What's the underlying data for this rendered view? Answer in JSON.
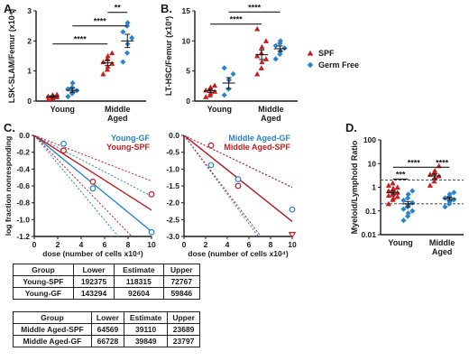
{
  "colors": {
    "spf": "#c41e1e",
    "gf": "#2a84cc",
    "axis": "#1a1a1a",
    "ref": "#333333"
  },
  "panels": {
    "A": {
      "letter": "A."
    },
    "B": {
      "letter": "B."
    },
    "C": {
      "letter": "C."
    },
    "D": {
      "letter": "D."
    }
  },
  "chart_data": [
    {
      "id": "A",
      "type": "scatter",
      "ylabel": "LSK-SLAM/Femur (x10⁴)",
      "ylim": [
        0,
        3
      ],
      "yticks": [
        0,
        1,
        2,
        3
      ],
      "groups": [
        "Young",
        "Middle Aged"
      ],
      "series": [
        {
          "name": "SPF",
          "marker": "triangle",
          "points": [
            {
              "group": "Young",
              "values": [
                0.05,
                0.1,
                0.12,
                0.14,
                0.16,
                0.18,
                0.2,
                0.22
              ],
              "mean": 0.15,
              "sem": 0.03
            },
            {
              "group": "Middle Aged",
              "values": [
                0.9,
                1.05,
                1.15,
                1.25,
                1.3,
                1.4,
                1.5,
                1.6
              ],
              "mean": 1.27,
              "sem": 0.09
            }
          ]
        },
        {
          "name": "Germ Free",
          "marker": "diamond",
          "points": [
            {
              "group": "Young",
              "values": [
                0.15,
                0.25,
                0.3,
                0.35,
                0.4,
                0.45,
                0.6
              ],
              "mean": 0.36,
              "sem": 0.07
            },
            {
              "group": "Middle Aged",
              "values": [
                1.3,
                1.6,
                1.9,
                2.1,
                2.3,
                2.5,
                2.6
              ],
              "mean": 2.0,
              "sem": 0.22
            }
          ]
        }
      ],
      "significance": [
        {
          "label": "****",
          "from": [
            0,
            "SPF"
          ],
          "to": [
            1,
            "SPF"
          ],
          "y": 1.9
        },
        {
          "label": "****",
          "from": [
            0,
            "Germ Free"
          ],
          "to": [
            1,
            "Germ Free"
          ],
          "y": 2.5
        },
        {
          "label": "**",
          "from": [
            1,
            "SPF"
          ],
          "to": [
            1,
            "Germ Free"
          ],
          "y": 2.95
        }
      ]
    },
    {
      "id": "B",
      "type": "scatter",
      "ylabel": "LT-HSC/Femur (x10³)",
      "ylim": [
        0,
        15
      ],
      "yticks": [
        0,
        5,
        10,
        15
      ],
      "groups": [
        "Young",
        "Middle Aged"
      ],
      "legend": {
        "placement": "right",
        "entries": [
          "SPF",
          "Germ Free"
        ]
      },
      "series": [
        {
          "name": "SPF",
          "marker": "triangle",
          "points": [
            {
              "group": "Young",
              "values": [
                0.7,
                1.0,
                1.3,
                1.6,
                1.8,
                2.0,
                2.3,
                2.6
              ],
              "mean": 1.7,
              "sem": 0.25
            },
            {
              "group": "Middle Aged",
              "values": [
                4.5,
                5.5,
                6.5,
                7.0,
                7.5,
                8.0,
                9.0,
                10.0,
                12.0
              ],
              "mean": 7.7,
              "sem": 0.8
            }
          ]
        },
        {
          "name": "Germ Free",
          "marker": "diamond",
          "points": [
            {
              "group": "Young",
              "values": [
                1.0,
                2.0,
                3.5,
                4.5,
                5.5
              ],
              "mean": 3.0,
              "sem": 0.9
            },
            {
              "group": "Middle Aged",
              "values": [
                7.0,
                7.8,
                8.3,
                8.8,
                9.2,
                9.6,
                10.0
              ],
              "mean": 8.7,
              "sem": 0.45
            }
          ]
        }
      ],
      "significance": [
        {
          "label": "****",
          "from": [
            0,
            "SPF"
          ],
          "to": [
            1,
            "SPF"
          ],
          "y": 12.8
        },
        {
          "label": "****",
          "from": [
            0,
            "Germ Free"
          ],
          "to": [
            1,
            "Germ Free"
          ],
          "y": 14.8
        }
      ]
    },
    {
      "id": "C1",
      "type": "line",
      "xlabel": "dose (number of cells x10⁴)",
      "ylabel": "log fraction nonresponding",
      "xlim": [
        0,
        10
      ],
      "xticks": [
        0,
        2,
        4,
        6,
        8,
        10
      ],
      "ylim": [
        -1.2,
        0
      ],
      "yticks": [
        0,
        -0.2,
        -0.4,
        -0.6,
        -0.8,
        -1.0,
        -1.2
      ],
      "legend": {
        "placement": "top-right",
        "entries": [
          "Young-GF",
          "Young-SPF"
        ]
      },
      "series": [
        {
          "name": "Young-GF",
          "color": "gf",
          "slope": -0.1141,
          "lower_slope": -0.0721,
          "upper_slope": -0.1676,
          "points": [
            {
              "x": 2.5,
              "y": -0.1
            },
            {
              "x": 5,
              "y": -0.63
            },
            {
              "x": 10,
              "y": -1.15
            }
          ]
        },
        {
          "name": "Young-SPF",
          "color": "spf",
          "slope": -0.0887,
          "lower_slope": -0.0542,
          "upper_slope": -0.1442,
          "points": [
            {
              "x": 2.5,
              "y": -0.18
            },
            {
              "x": 5,
              "y": -0.55
            },
            {
              "x": 10,
              "y": -0.7
            }
          ]
        }
      ]
    },
    {
      "id": "C2",
      "type": "line",
      "xlabel": "dose (number of cells x10⁴)",
      "ylabel": "",
      "xlim": [
        0,
        10
      ],
      "xticks": [
        0,
        2,
        4,
        6,
        8,
        10
      ],
      "ylim": [
        -3.0,
        0
      ],
      "yticks": [
        0,
        -0.5,
        -1.0,
        -1.5,
        -2.0,
        -2.5,
        -3.0
      ],
      "legend": {
        "placement": "top-right",
        "entries": [
          "Middle Aged-GF",
          "Middle Aged-SPF"
        ]
      },
      "series": [
        {
          "name": "Middle Aged-GF",
          "color": "gf",
          "slope": -0.2555,
          "lower_slope": -0.1537,
          "upper_slope": -0.4368,
          "points": [
            {
              "x": 2.5,
              "y": -0.88
            },
            {
              "x": 5,
              "y": -1.3
            },
            {
              "x": 10,
              "y": -2.2
            }
          ]
        },
        {
          "name": "Middle Aged-SPF",
          "color": "spf",
          "slope": -0.2557,
          "lower_slope": -0.1548,
          "upper_slope": -0.4221,
          "points": [
            {
              "x": 2.5,
              "y": -0.3
            },
            {
              "x": 5,
              "y": -1.5
            },
            {
              "x": 10,
              "y": -2.95,
              "marker": "open-triangle"
            }
          ]
        }
      ]
    },
    {
      "id": "D",
      "type": "scatter",
      "ylabel": "Myeloid/Lymphoid Ratio",
      "yscale": "log",
      "ylim": [
        0.01,
        100
      ],
      "yticks": [
        0.01,
        0.1,
        1,
        10,
        100
      ],
      "ytick_labels": [
        "0.01",
        "0.1",
        "1",
        "10",
        "100"
      ],
      "groups": [
        "Young",
        "Middle Aged"
      ],
      "reference_lines": [
        2.0,
        0.2
      ],
      "series": [
        {
          "name": "SPF",
          "marker": "triangle",
          "points": [
            {
              "group": "Young",
              "values": [
                0.2,
                0.3,
                0.35,
                0.4,
                0.45,
                0.5,
                0.55,
                0.6,
                0.7,
                0.8,
                0.9,
                1.0,
                1.2,
                1.5
              ],
              "mean": 0.6,
              "sem": 0.08
            },
            {
              "group": "Middle Aged",
              "values": [
                1.2,
                1.8,
                2.5,
                3.0,
                3.5,
                4.0,
                5.0,
                8.0
              ],
              "mean": 3.0,
              "sem": 0.7
            }
          ]
        },
        {
          "name": "Germ Free",
          "marker": "diamond",
          "points": [
            {
              "group": "Young",
              "values": [
                0.04,
                0.06,
                0.08,
                0.1,
                0.12,
                0.15,
                0.18,
                0.22,
                0.28,
                0.35,
                0.5,
                0.7
              ],
              "mean": 0.2,
              "sem": 0.05
            },
            {
              "group": "Middle Aged",
              "values": [
                0.15,
                0.2,
                0.25,
                0.3,
                0.35,
                0.4,
                0.5,
                0.6
              ],
              "mean": 0.33,
              "sem": 0.05
            }
          ]
        }
      ],
      "significance": [
        {
          "label": "***",
          "from": [
            0,
            "SPF"
          ],
          "to": [
            0,
            "Germ Free"
          ],
          "y": 2.2
        },
        {
          "label": "****",
          "from": [
            0,
            "SPF"
          ],
          "to": [
            1,
            "SPF"
          ],
          "y": 7
        },
        {
          "label": "****",
          "from": [
            1,
            "SPF"
          ],
          "to": [
            1,
            "Germ Free"
          ],
          "y": 7
        }
      ]
    }
  ],
  "tables": [
    {
      "headers": [
        "Group",
        "Lower",
        "Estimate",
        "Upper"
      ],
      "rows": [
        [
          "Young-SPF",
          "192375",
          "118315",
          "72767"
        ],
        [
          "Young-GF",
          "143294",
          "92604",
          "59846"
        ]
      ]
    },
    {
      "headers": [
        "Group",
        "Lower",
        "Estimate",
        "Upper"
      ],
      "rows": [
        [
          "Middle Aged-SPF",
          "64569",
          "39110",
          "23689"
        ],
        [
          "Middle Aged-GF",
          "66728",
          "39849",
          "23797"
        ]
      ]
    }
  ]
}
